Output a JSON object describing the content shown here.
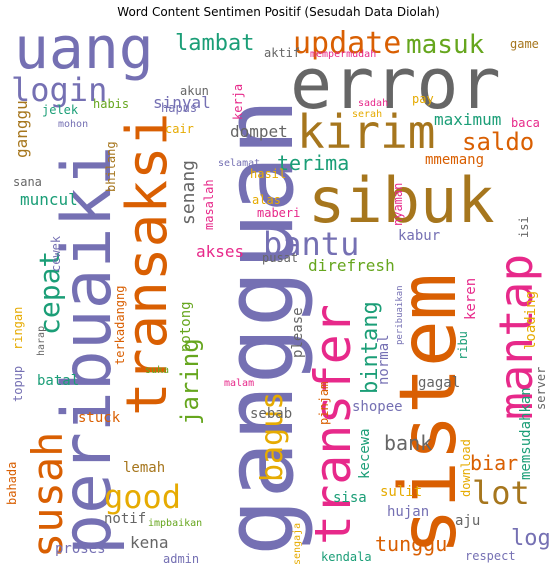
{
  "chart_data": {
    "type": "wordcloud",
    "title": "Word Content Sentimen Positif (Sesudah Data Diolah)",
    "palette": [
      "#1b9e77",
      "#d95f02",
      "#7570b3",
      "#e7298a",
      "#66a61e",
      "#e6ab02",
      "#a6761d",
      "#666666"
    ],
    "words": [
      {
        "text": "gangguan",
        "color": "#7570b3"
      },
      {
        "text": "sistem",
        "color": "#d95f02"
      },
      {
        "text": "error",
        "color": "#666666"
      },
      {
        "text": "sibuk",
        "color": "#a6761d"
      },
      {
        "text": "peribuaiki",
        "color": "#7570b3"
      },
      {
        "text": "transaksi",
        "color": "#d95f02"
      },
      {
        "text": "uang",
        "color": "#7570b3"
      },
      {
        "text": "transfer",
        "color": "#e7298a"
      },
      {
        "text": "mantap",
        "color": "#e7298a"
      },
      {
        "text": "kirim",
        "color": "#a6761d"
      },
      {
        "text": "susah",
        "color": "#d95f02"
      },
      {
        "text": "bantu",
        "color": "#7570b3"
      },
      {
        "text": "login",
        "color": "#7570b3"
      },
      {
        "text": "update",
        "color": "#d95f02"
      },
      {
        "text": "masuk",
        "color": "#66a61e"
      },
      {
        "text": "good",
        "color": "#e6ab02"
      },
      {
        "text": "lot",
        "color": "#a6761d"
      },
      {
        "text": "bagus",
        "color": "#e6ab02"
      },
      {
        "text": "cepat",
        "color": "#1b9e77"
      },
      {
        "text": "saldo",
        "color": "#d95f02"
      },
      {
        "text": "jaring",
        "color": "#66a61e"
      },
      {
        "text": "lambat",
        "color": "#1b9e77"
      },
      {
        "text": "terima",
        "color": "#1b9e77"
      },
      {
        "text": "bintang",
        "color": "#1b9e77"
      },
      {
        "text": "log",
        "color": "#7570b3"
      },
      {
        "text": "tunggu",
        "color": "#d95f02"
      },
      {
        "text": "biar",
        "color": "#d95f02"
      },
      {
        "text": "bank",
        "color": "#666666"
      },
      {
        "text": "senang",
        "color": "#666666"
      },
      {
        "text": "maximum",
        "color": "#1b9e77"
      },
      {
        "text": "dompet",
        "color": "#666666"
      },
      {
        "text": "sinyal",
        "color": "#7570b3"
      },
      {
        "text": "ganggu",
        "color": "#a6761d"
      },
      {
        "text": "muncul",
        "color": "#1b9e77"
      },
      {
        "text": "mmemang",
        "color": "#d95f02"
      },
      {
        "text": "akses",
        "color": "#e7298a"
      },
      {
        "text": "direfresh",
        "color": "#66a61e"
      },
      {
        "text": "kabur",
        "color": "#7570b3"
      },
      {
        "text": "potong",
        "color": "#66a61e"
      },
      {
        "text": "please",
        "color": "#666666"
      },
      {
        "text": "normal",
        "color": "#7570b3"
      },
      {
        "text": "keren",
        "color": "#e7298a"
      },
      {
        "text": "loading",
        "color": "#e6ab02"
      },
      {
        "text": "memsudahkan",
        "color": "#1b9e77"
      },
      {
        "text": "gagal",
        "color": "#666666"
      },
      {
        "text": "batal",
        "color": "#1b9e77"
      },
      {
        "text": "lemah",
        "color": "#a6761d"
      },
      {
        "text": "kena",
        "color": "#666666"
      },
      {
        "text": "proses",
        "color": "#7570b3"
      },
      {
        "text": "notif",
        "color": "#666666"
      },
      {
        "text": "stuck",
        "color": "#d95f02"
      },
      {
        "text": "sebab",
        "color": "#666666"
      },
      {
        "text": "shopee",
        "color": "#7570b3"
      },
      {
        "text": "kecewa",
        "color": "#1b9e77"
      },
      {
        "text": "sisa",
        "color": "#1b9e77"
      },
      {
        "text": "sulit",
        "color": "#e6ab02"
      },
      {
        "text": "hujan",
        "color": "#7570b3"
      },
      {
        "text": "aju",
        "color": "#666666"
      },
      {
        "text": "respect",
        "color": "#7570b3"
      },
      {
        "text": "kendala",
        "color": "#1b9e77"
      },
      {
        "text": "admin",
        "color": "#7570b3"
      },
      {
        "text": "jelek",
        "color": "#1b9e77"
      },
      {
        "text": "habis",
        "color": "#66a61e"
      },
      {
        "text": "hapus",
        "color": "#7570b3"
      },
      {
        "text": "cair",
        "color": "#e6ab02"
      },
      {
        "text": "akun",
        "color": "#666666"
      },
      {
        "text": "aktif",
        "color": "#666666"
      },
      {
        "text": "mempermudah",
        "color": "#e7298a"
      },
      {
        "text": "game",
        "color": "#a6761d"
      },
      {
        "text": "pay",
        "color": "#e6ab02"
      },
      {
        "text": "baca",
        "color": "#e7298a"
      },
      {
        "text": "kerja",
        "color": "#e7298a"
      },
      {
        "text": "sadah",
        "color": "#e7298a"
      },
      {
        "text": "serah",
        "color": "#e6ab02"
      },
      {
        "text": "mohon",
        "color": "#7570b3"
      },
      {
        "text": "sana",
        "color": "#666666"
      },
      {
        "text": "bhilang",
        "color": "#a6761d"
      },
      {
        "text": "selamat",
        "color": "#7570b3"
      },
      {
        "text": "hasil",
        "color": "#e6ab02"
      },
      {
        "text": "nyaman",
        "color": "#e7298a"
      },
      {
        "text": "masalah",
        "color": "#e7298a"
      },
      {
        "text": "alas",
        "color": "#e6ab02"
      },
      {
        "text": "maberi",
        "color": "#e7298a"
      },
      {
        "text": "isi",
        "color": "#666666"
      },
      {
        "text": "cewek",
        "color": "#7570b3"
      },
      {
        "text": "pusat",
        "color": "#666666"
      },
      {
        "text": "topup",
        "color": "#7570b3"
      },
      {
        "text": "ringan",
        "color": "#e6ab02"
      },
      {
        "text": "terkadangng",
        "color": "#d95f02"
      },
      {
        "text": "harap",
        "color": "#666666"
      },
      {
        "text": "suka",
        "color": "#66a61e"
      },
      {
        "text": "malam",
        "color": "#e7298a"
      },
      {
        "text": "pinjam",
        "color": "#d95f02"
      },
      {
        "text": "peribuaikan",
        "color": "#7570b3"
      },
      {
        "text": "ribu",
        "color": "#1b9e77"
      },
      {
        "text": "server",
        "color": "#666666"
      },
      {
        "text": "bahada",
        "color": "#d95f02"
      },
      {
        "text": "download",
        "color": "#e6ab02"
      },
      {
        "text": "sengaja",
        "color": "#e6ab02"
      },
      {
        "text": "impbaikan",
        "color": "#66a61e"
      }
    ]
  }
}
